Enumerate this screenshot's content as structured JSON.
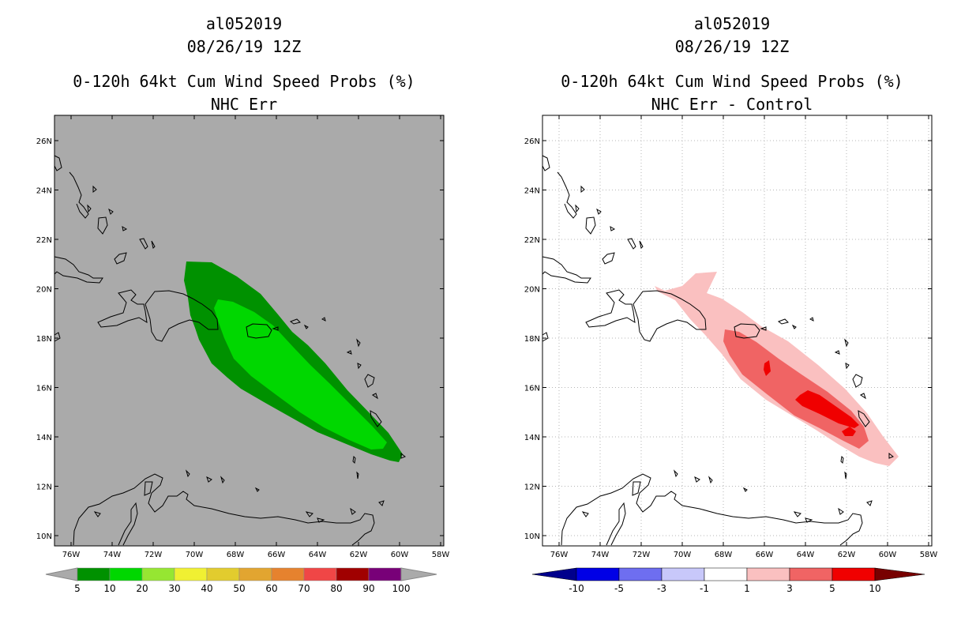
{
  "panels": [
    {
      "id": "left",
      "storm_id": "al052019",
      "datetime": "08/26/19 12Z",
      "product": "0-120h 64kt Cum Wind Speed Probs (%)",
      "subtitle": "NHC Err",
      "background_color": "#aaaaaa",
      "lon_labels": [
        "76W",
        "74W",
        "72W",
        "70W",
        "68W",
        "66W",
        "64W",
        "62W",
        "60W",
        "58W"
      ],
      "lat_labels": [
        "26N",
        "24N",
        "22N",
        "20N",
        "18N",
        "16N",
        "14N",
        "12N",
        "10N"
      ],
      "colorbar": {
        "labels": [
          "5",
          "10",
          "20",
          "30",
          "40",
          "50",
          "60",
          "70",
          "80",
          "90",
          "100"
        ],
        "colors": [
          "#009100",
          "#00d700",
          "#96e632",
          "#f0f032",
          "#e2cc2e",
          "#e2a530",
          "#e6822e",
          "#f04646",
          "#a00000",
          "#780078",
          "#7d28d7"
        ],
        "end_color": "#aaaaaa"
      },
      "contours": [
        {
          "level": "5-10%",
          "color": "#009100"
        },
        {
          "level": "10-20%",
          "color": "#00d700"
        }
      ]
    },
    {
      "id": "right",
      "storm_id": "al052019",
      "datetime": "08/26/19 12Z",
      "product": "0-120h 64kt Cum Wind Speed Probs (%)",
      "subtitle": "NHC Err - Control",
      "background_color": "#ffffff",
      "lon_labels": [
        "76W",
        "74W",
        "72W",
        "70W",
        "68W",
        "66W",
        "64W",
        "62W",
        "60W",
        "58W"
      ],
      "lat_labels": [
        "26N",
        "24N",
        "22N",
        "20N",
        "18N",
        "16N",
        "14N",
        "12N",
        "10N"
      ],
      "colorbar": {
        "labels": [
          "-10",
          "-5",
          "-3",
          "-1",
          "1",
          "3",
          "5",
          "10"
        ],
        "colors": [
          "#0000e6",
          "#6e6ef0",
          "#c8c8fa",
          "#ffffff",
          "#fac0c0",
          "#f06464",
          "#f00000"
        ],
        "end_color_low": "#00008c",
        "end_color_high": "#780000"
      },
      "contours": [
        {
          "level": "1 to 3",
          "color": "#fac0c0"
        },
        {
          "level": "3 to 5",
          "color": "#f06464"
        },
        {
          "level": "5 to 10",
          "color": "#f00000"
        }
      ]
    }
  ]
}
